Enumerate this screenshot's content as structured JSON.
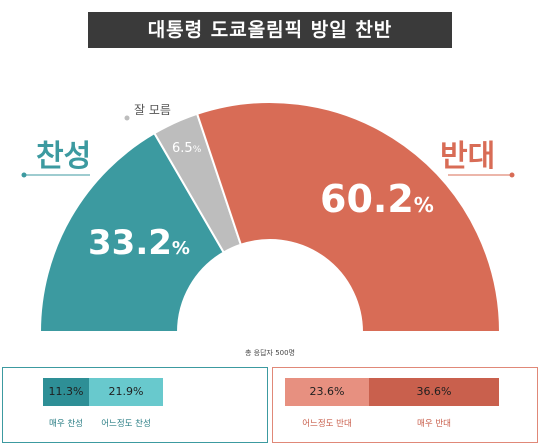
{
  "title": "대통령 도쿄올림픽 방일 찬반",
  "footnote": "총 응답자 500명",
  "colors": {
    "support": "#3c9aa0",
    "unsure": "#bdbdbd",
    "oppose": "#d86c56",
    "strong_support": "#2e8f96",
    "mild_support": "#68c9cd",
    "mild_oppose": "#e79080",
    "strong_oppose": "#c9604d"
  },
  "chart_data": [
    {
      "type": "pie",
      "variant": "half-donut",
      "categories": [
        "찬성",
        "잘 모름",
        "반대"
      ],
      "values": [
        33.2,
        6.5,
        60.2
      ],
      "value_labels": [
        "33.2",
        "6.5",
        "60.2"
      ],
      "unit": "%"
    },
    {
      "type": "bar",
      "variant": "stacked-horizontal",
      "categories": [
        "매우 찬성",
        "어느정도 찬성",
        "어느정도 반대",
        "매우 반대"
      ],
      "values": [
        11.3,
        21.9,
        23.6,
        36.6
      ],
      "value_labels": [
        "11.3%",
        "21.9%",
        "23.6%",
        "36.6%"
      ]
    }
  ]
}
